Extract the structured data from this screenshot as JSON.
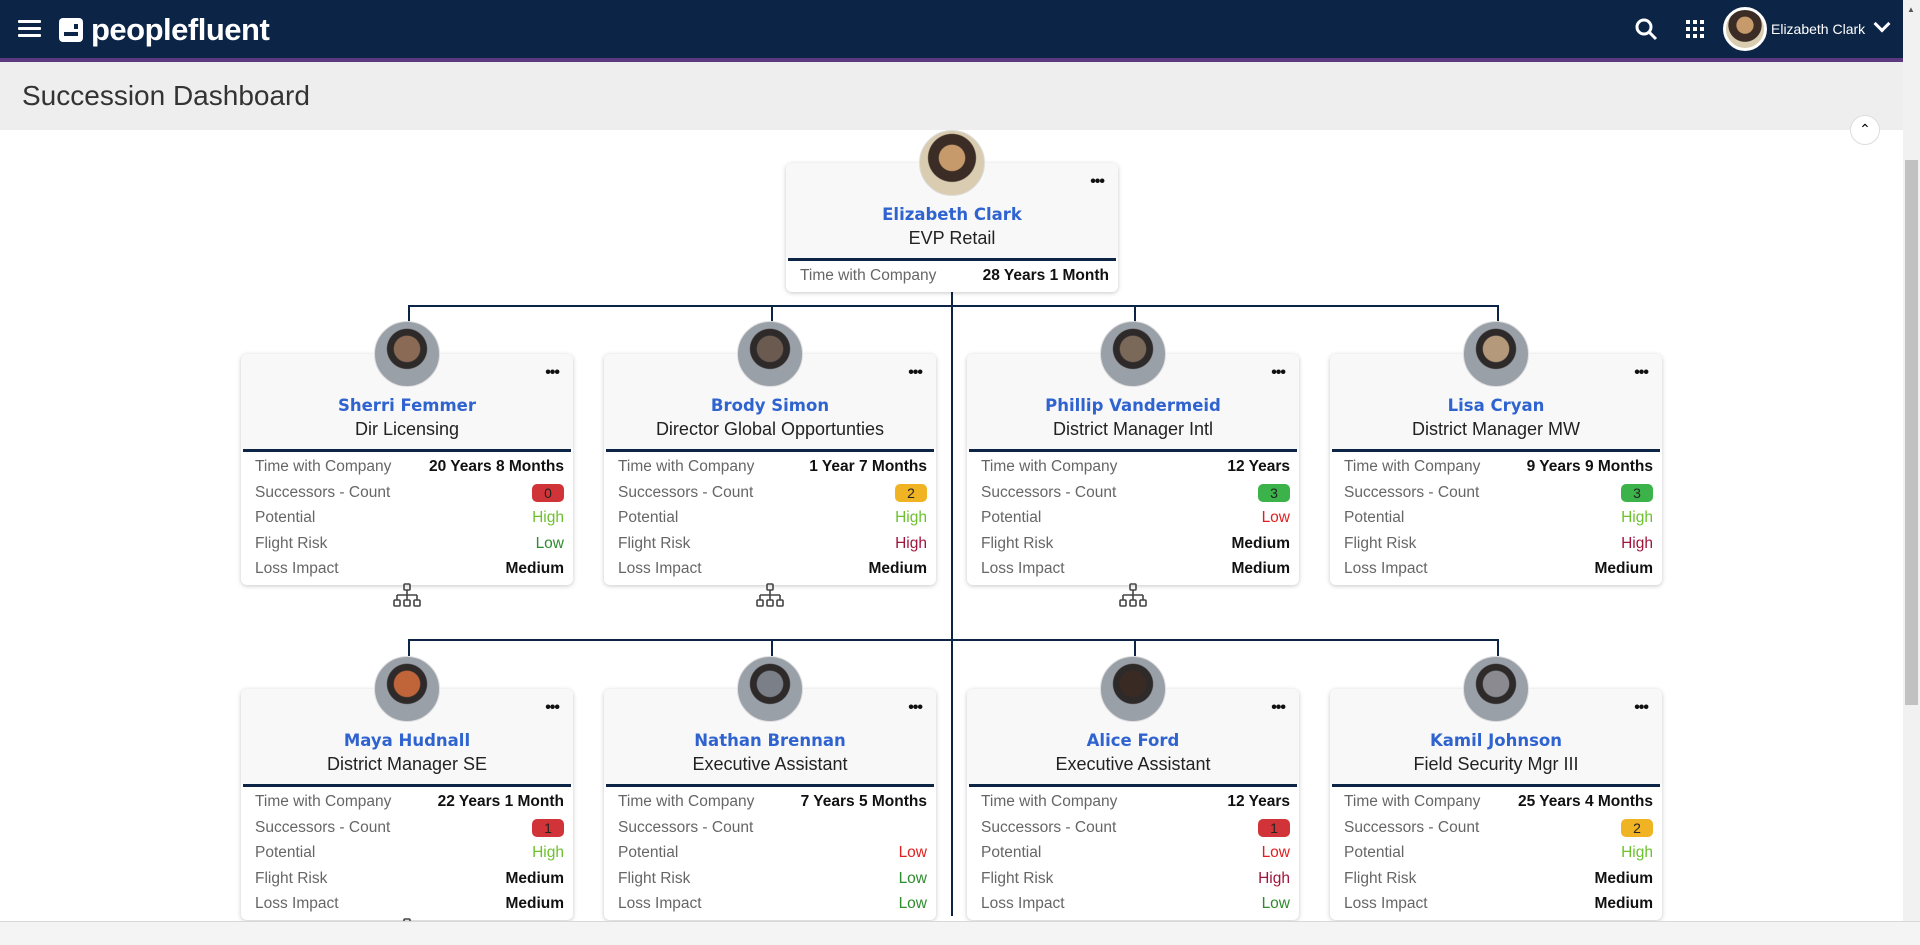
{
  "header": {
    "brand": "peoplefluent",
    "user_name": "Elizabeth Clark",
    "icons": [
      "menu-icon",
      "search-icon",
      "apps-grid-icon",
      "chevron-down-icon"
    ]
  },
  "page": {
    "title": "Succession Dashboard"
  },
  "colors": {
    "navy": "#0c2547",
    "accent_purple": "#5b3a82",
    "name_blue": "#2f63cf",
    "badge_red": "#d13438",
    "badge_yellow": "#f0b323",
    "badge_green": "#3cb34a",
    "high_potential": "#6cc12e",
    "low_red": "#e02020",
    "high_risk": "#a0143c",
    "low_green": "#2e8b2e"
  },
  "labels": {
    "time": "Time with Company",
    "successors": "Successors - Count",
    "potential": "Potential",
    "flight": "Flight Risk",
    "loss": "Loss Impact"
  },
  "root": {
    "name": "Elizabeth Clark",
    "role": "EVP Retail",
    "time": "28 Years 1 Month"
  },
  "reports": [
    {
      "name": "Sherri Femmer",
      "role": "Dir Licensing",
      "time": "20 Years 8 Months",
      "successors": "0",
      "successors_level": "red",
      "potential": "High",
      "flight": "Low",
      "loss": "Medium",
      "has_org": true
    },
    {
      "name": "Brody Simon",
      "role": "Director Global Opportunties",
      "time": "1 Year 7 Months",
      "successors": "2",
      "successors_level": "yellow",
      "potential": "High",
      "flight": "High",
      "loss": "Medium",
      "has_org": true
    },
    {
      "name": "Phillip Vandermeid",
      "role": "District Manager Intl",
      "time": "12 Years",
      "successors": "3",
      "successors_level": "green",
      "potential": "Low",
      "flight": "Medium",
      "loss": "Medium",
      "has_org": true
    },
    {
      "name": "Lisa Cryan",
      "role": "District Manager MW",
      "time": "9 Years 9 Months",
      "successors": "3",
      "successors_level": "green",
      "potential": "High",
      "flight": "High",
      "loss": "Medium",
      "has_org": false
    },
    {
      "name": "Maya Hudnall",
      "role": "District Manager SE",
      "time": "22 Years 1 Month",
      "successors": "1",
      "successors_level": "red",
      "potential": "High",
      "flight": "Medium",
      "loss": "Medium",
      "has_org": true
    },
    {
      "name": "Nathan Brennan",
      "role": "Executive Assistant",
      "time": "7 Years 5 Months",
      "successors": "",
      "successors_level": "",
      "potential": "Low",
      "flight": "Low",
      "loss": "Low",
      "has_org": false
    },
    {
      "name": "Alice Ford",
      "role": "Executive Assistant",
      "time": "12 Years",
      "successors": "1",
      "successors_level": "red",
      "potential": "Low",
      "flight": "High",
      "loss": "Low",
      "has_org": false
    },
    {
      "name": "Kamil Johnson",
      "role": "Field Security Mgr III",
      "time": "25 Years 4 Months",
      "successors": "2",
      "successors_level": "yellow",
      "potential": "High",
      "flight": "Medium",
      "loss": "Medium",
      "has_org": false
    }
  ]
}
